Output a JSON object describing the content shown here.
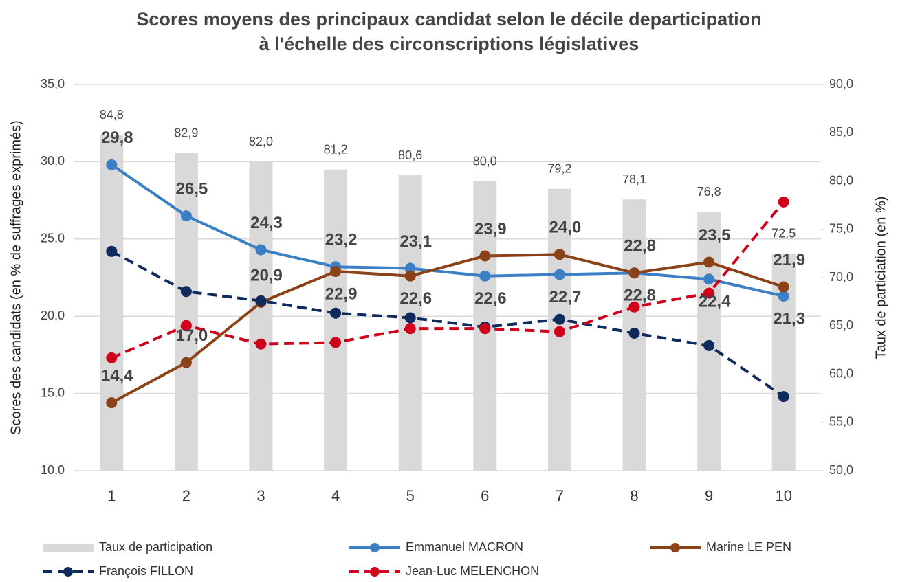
{
  "chart_data": {
    "type": "bar-line",
    "title": [
      "Scores moyens des principaux candidat selon le décile departicipation",
      "à l'échelle des circonscriptions législatives"
    ],
    "y_label": "Scores des candidats (en % de suffrages exprimés)",
    "y2_label": "Taux de particiation (en %)",
    "categories": [
      "1",
      "2",
      "3",
      "4",
      "5",
      "6",
      "7",
      "8",
      "9",
      "10"
    ],
    "ylim": [
      10,
      35
    ],
    "yticks": [
      {
        "value": 10,
        "label": "10,0"
      },
      {
        "value": 15,
        "label": "15,0"
      },
      {
        "value": 20,
        "label": "20,0"
      },
      {
        "value": 25,
        "label": "25,0"
      },
      {
        "value": 30,
        "label": "30,0"
      },
      {
        "value": 35,
        "label": "35,0"
      }
    ],
    "y2lim": [
      50,
      90
    ],
    "y2ticks": [
      {
        "value": 50,
        "label": "50,0"
      },
      {
        "value": 55,
        "label": "55,0"
      },
      {
        "value": 60,
        "label": "60,0"
      },
      {
        "value": 65,
        "label": "65,0"
      },
      {
        "value": 70,
        "label": "70,0"
      },
      {
        "value": 75,
        "label": "75,0"
      },
      {
        "value": 80,
        "label": "80,0"
      },
      {
        "value": 85,
        "label": "85,0"
      },
      {
        "value": 90,
        "label": "90,0"
      }
    ],
    "grid": true,
    "legend": "bottom",
    "series": [
      {
        "name": "Taux de participation",
        "kind": "bar",
        "axis": "y2",
        "color": "#d9d9d9",
        "values": [
          84.8,
          82.9,
          82.0,
          81.2,
          80.6,
          80.0,
          79.2,
          78.1,
          76.8,
          72.5
        ],
        "value_labels": [
          "84,8",
          "82,9",
          "82,0",
          "81,2",
          "80,6",
          "80,0",
          "79,2",
          "78,1",
          "76,8",
          "72,5"
        ]
      },
      {
        "name": "Emmanuel MACRON",
        "kind": "line",
        "color": "#3b7fc4",
        "style": "solid",
        "values": [
          29.8,
          26.5,
          24.3,
          23.2,
          23.1,
          22.6,
          22.7,
          22.8,
          22.4,
          21.3
        ],
        "value_labels": [
          "29,8",
          "26,5",
          "24,3",
          "23,2",
          "23,1",
          "22,6",
          "22,7",
          "22,8",
          "22,4",
          "21,3"
        ]
      },
      {
        "name": "Marine LE PEN",
        "kind": "line",
        "color": "#8b4216",
        "style": "solid",
        "values": [
          14.4,
          17.0,
          20.9,
          22.9,
          22.6,
          23.9,
          24.0,
          22.8,
          23.5,
          21.9
        ],
        "value_labels": [
          "14,4",
          "17,0",
          "20,9",
          "22,9",
          "22,6",
          "23,9",
          "24,0",
          "22,8",
          "23,5",
          "21,9"
        ]
      },
      {
        "name": "François FILLON",
        "kind": "line",
        "color": "#0f2a5c",
        "style": "dashed",
        "values": [
          24.2,
          21.6,
          21.0,
          20.2,
          19.9,
          19.3,
          19.8,
          18.9,
          18.1,
          14.8
        ]
      },
      {
        "name": "Jean-Luc MELENCHON",
        "kind": "line",
        "color": "#d0021b",
        "style": "dashed",
        "values": [
          17.3,
          19.4,
          18.2,
          18.3,
          19.2,
          19.2,
          19.0,
          20.6,
          21.5,
          27.4
        ]
      }
    ]
  }
}
